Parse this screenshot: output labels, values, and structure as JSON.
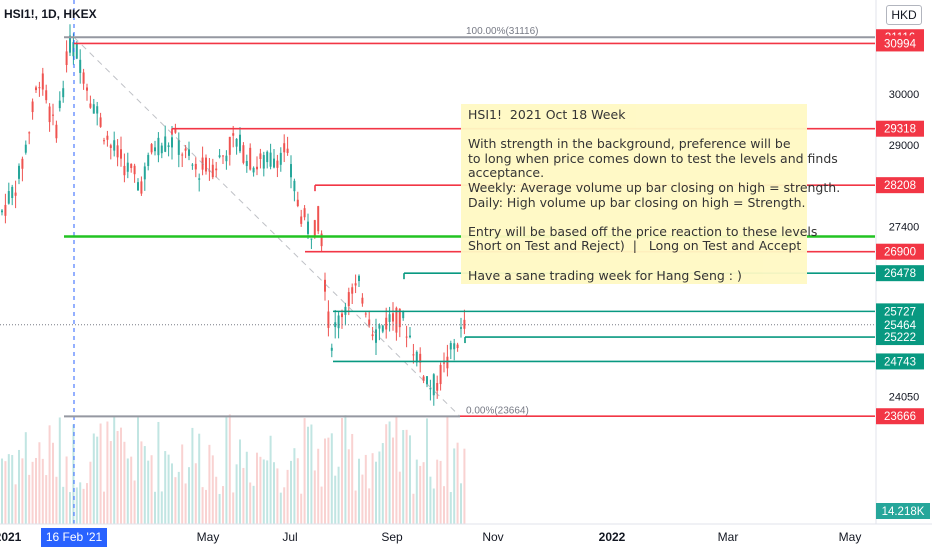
{
  "header": {
    "symbol": "HSI1!, 1D, HKEX",
    "currency": "HKD"
  },
  "note": {
    "lines": [
      "HSI1!  2021 Oct 18 Week",
      "",
      "With strength in the background, preference will be",
      "to long when price comes down to test the levels and finds",
      "acceptance.",
      "Weekly: Average volume up bar closing on high = strength.",
      "Daily: High volume up bar closing on high = Strength.",
      "",
      "Entry will be based off the price reaction to these levels",
      "Short on Test and Reject)  |   Long on Test and Accept",
      "",
      "Have a sane trading week for Hang Seng : )"
    ]
  },
  "chart_data": {
    "type": "candlestick",
    "instrument": "HSI1!",
    "timeframe": "1D",
    "exchange": "HKEX",
    "y_axis_ticks": [
      30000,
      29000,
      27400,
      24050
    ],
    "x_axis_ticks": [
      "2021",
      "May",
      "Jul",
      "Sep",
      "Nov",
      "2022",
      "Mar",
      "May"
    ],
    "crosshair_date": "16 Feb '21",
    "fib": {
      "top_label": "100.00%(31116)",
      "bottom_label": "0.00%(23664)",
      "top": 31116,
      "bottom": 23664
    },
    "levels": [
      {
        "value": 31116,
        "label": "31116",
        "color": "#f23645"
      },
      {
        "value": 30994,
        "label": "30994",
        "color": "#f23645"
      },
      {
        "value": 29318,
        "label": "29318",
        "color": "#f23645"
      },
      {
        "value": 28208,
        "label": "28208",
        "color": "#f23645"
      },
      {
        "value": 26900,
        "label": "26900",
        "color": "#f23645"
      },
      {
        "value": 26478,
        "label": "26478",
        "color": "#089981"
      },
      {
        "value": 25727,
        "label": "25727",
        "color": "#089981"
      },
      {
        "value": 25464,
        "label": "25464",
        "color": "#089981"
      },
      {
        "value": 25222,
        "label": "25222",
        "color": "#089981"
      },
      {
        "value": 24743,
        "label": "24743",
        "color": "#089981"
      },
      {
        "value": 23666,
        "label": "23666",
        "color": "#f23645"
      }
    ],
    "green_level": 27200,
    "last_price": 25464,
    "volume_label": "14.218K",
    "colors": {
      "up": "#26a69a",
      "down": "#ef5350",
      "green_line": "#22c322",
      "fib_line": "#9598a1",
      "crosshair": "#2962ff"
    }
  }
}
